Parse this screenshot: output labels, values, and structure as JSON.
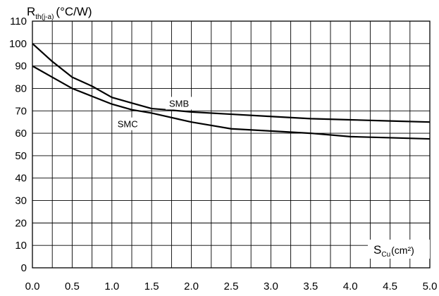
{
  "chart_data": {
    "type": "line",
    "ylabel": {
      "main": "R",
      "sub": "th(j-a)",
      "unit": "(°C/W)"
    },
    "xlabel": {
      "main": "S",
      "sub": "Cu",
      "unit": "(cm²)"
    },
    "xlim": [
      0,
      5
    ],
    "ylim": [
      0,
      110
    ],
    "x_ticks": [
      "0.0",
      "0.5",
      "1.0",
      "1.5",
      "2.0",
      "2.5",
      "3.0",
      "3.5",
      "4.0",
      "4.5",
      "5.0"
    ],
    "y_ticks": [
      "0",
      "10",
      "20",
      "30",
      "40",
      "50",
      "60",
      "70",
      "80",
      "90",
      "100",
      "110"
    ],
    "x_minor_step": 0.25,
    "grid": true,
    "series": [
      {
        "name": "SMB",
        "x": [
          0.0,
          0.25,
          0.5,
          0.75,
          1.0,
          1.25,
          1.5,
          1.75,
          2.0,
          2.5,
          3.0,
          3.5,
          4.0,
          4.5,
          5.0
        ],
        "y": [
          100,
          92,
          85,
          81,
          76,
          73.5,
          71,
          70.3,
          69.5,
          68.5,
          67.5,
          66.5,
          66,
          65.5,
          65
        ]
      },
      {
        "name": "SMC",
        "x": [
          0.0,
          0.25,
          0.5,
          0.75,
          1.0,
          1.25,
          1.5,
          1.75,
          2.0,
          2.25,
          2.5,
          3.0,
          3.5,
          4.0,
          4.5,
          5.0
        ],
        "y": [
          90,
          85,
          80,
          76.5,
          73,
          70.5,
          69,
          67,
          65,
          63.5,
          62,
          61,
          60,
          58.5,
          58,
          57.5
        ]
      }
    ]
  }
}
